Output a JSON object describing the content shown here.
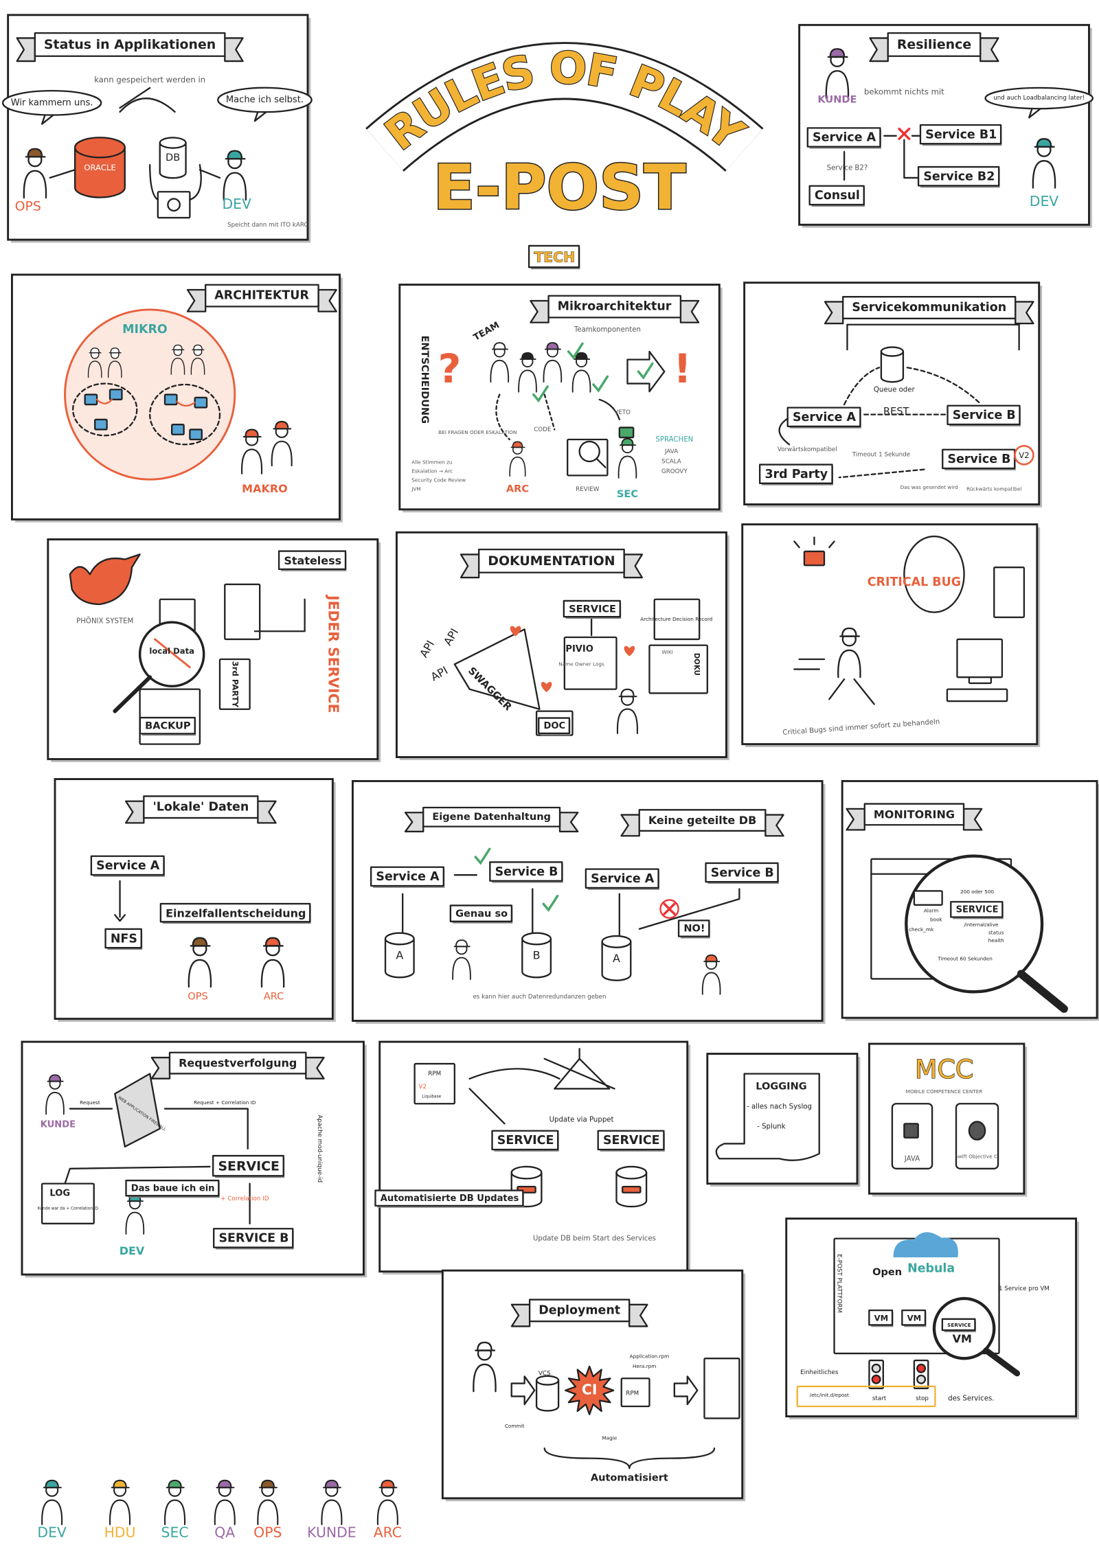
{
  "header": {
    "title": "RULES OF PLAY",
    "subtitle": "E-POST",
    "tag": "TECH"
  },
  "panels": [
    {
      "texts": [
        "Status in Applikationen",
        "kann gespeichert werden in",
        "Wir kammern uns.",
        "Mache ich selbst.",
        "ORACLE",
        "DB",
        "OPS",
        "DEV",
        "Speicht dann mit ITO kARC"
      ]
    },
    {
      "texts": [
        "Resilience",
        "KUNDE",
        "bekommt nichts mit",
        "und auch Loadbalancing later!",
        "Service A",
        "Service B1",
        "Service B2?",
        "Service B2",
        "Consul",
        "DEV"
      ]
    },
    {
      "texts": [
        "ARCHITEKTUR",
        "MIKRO",
        "MAKRO"
      ]
    },
    {
      "texts": [
        "Mikroarchitektur",
        "Teamkomponenten",
        "ENTSCHEIDUNG",
        "TEAM",
        "?",
        "!",
        "BEI FRAGEN ODER ESKALATION",
        "CODE",
        "VETO",
        "SPRACHEN",
        "JAVA",
        "SCALA",
        "GROOVY",
        "ARC",
        "REVIEW",
        "SEC",
        "Alle Stimmen zu",
        "Eskalation → Arc",
        "Security Code Review",
        "JVM"
      ]
    },
    {
      "texts": [
        "Servicekommunikation",
        "Queue oder",
        "REST",
        "Service A",
        "Service B",
        "Service B",
        "V2",
        "3rd Party",
        "Vorwärtskompatibel",
        "Timeout 1 Sekunde",
        "Das was gesendet wird",
        "Rückwärts kompatibel"
      ]
    },
    {
      "texts": [
        "PHÖNIX SYSTEM",
        "Stateless",
        "JEDER SERVICE",
        "local Data",
        "3rd PARTY",
        "BACKUP"
      ]
    },
    {
      "texts": [
        "DOKUMENTATION",
        "SERVICE",
        "Architecture Decision Record",
        "PIVIO",
        "Name Owner Logs",
        "WIKI",
        "DOKU",
        "API",
        "API",
        "API",
        "SWAGGER",
        "DOC"
      ]
    },
    {
      "texts": [
        "CRITICAL BUG",
        "Critical Bugs sind immer sofort zu behandeln"
      ]
    },
    {
      "texts": [
        "'Lokale' Daten",
        "Service A",
        "NFS",
        "Einzelfallentscheidung",
        "OPS",
        "ARC"
      ]
    },
    {
      "texts": [
        "Eigene Datenhaltung",
        "Keine geteilte DB",
        "Service A",
        "Service B",
        "Genau so",
        "A",
        "B",
        "es kann hier auch Datenredundanzen geben",
        "Service A",
        "Service B",
        "A",
        "NO!"
      ]
    },
    {
      "texts": [
        "MONITORING",
        "200 oder 500",
        "Alarm",
        "book",
        "check_mk",
        "SERVICE",
        "/internal/alive",
        "status",
        "health",
        "Timeout 60 Sekunden"
      ]
    },
    {
      "texts": [
        "Requestverfolgung",
        "KUNDE",
        "Request",
        "WEB APPLICATION FIREWALL",
        "Request + Correlation ID",
        "SERVICE",
        "+ Correlation ID",
        "SERVICE B",
        "LOG",
        "Kunde war da + Correlation ID",
        "Das baue ich ein",
        "DEV",
        "Apache mod-unique-id"
      ]
    },
    {
      "texts": [
        "RPM",
        "V2",
        "Liquibase",
        "Update via Puppet",
        "SERVICE",
        "SERVICE",
        "Automatisierte DB Updates",
        "Update DB beim Start des Services"
      ]
    },
    {
      "texts": [
        "LOGGING",
        "- alles nach Syslog",
        "- Splunk"
      ]
    },
    {
      "texts": [
        "MCC",
        "MOBILE COMPETENCE CENTER",
        "JAVA",
        "Swift Objective C"
      ]
    },
    {
      "texts": [
        "E-POST PLATTFORM",
        "Open",
        "Nebula",
        "1 Service pro VM",
        "VM",
        "VM",
        "SERVICE",
        "VM",
        "Einheitliches",
        "/etc/init.d/epost",
        "start",
        "stop",
        "des Services."
      ]
    },
    {
      "texts": [
        "Deployment",
        "VCS",
        "Commit",
        "CI",
        "Application.rpm",
        "Hera.rpm",
        "RPM",
        "Magie",
        "Automatisiert"
      ]
    }
  ],
  "legend": [
    "DEV",
    "HDU",
    "SEC",
    "QA",
    "OPS",
    "KUNDE",
    "ARC"
  ]
}
